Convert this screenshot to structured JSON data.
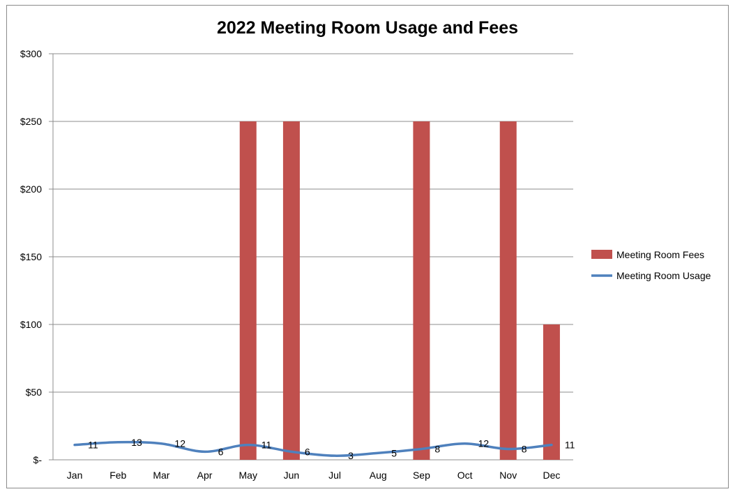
{
  "chart_data": {
    "type": "bar",
    "title": "2022 Meeting Room Usage and Fees",
    "categories": [
      "Jan",
      "Feb",
      "Mar",
      "Apr",
      "May",
      "Jun",
      "Jul",
      "Aug",
      "Sep",
      "Oct",
      "Nov",
      "Dec"
    ],
    "y_ticks": [
      "$-",
      "$50",
      "$100",
      "$150",
      "$200",
      "$250",
      "$300"
    ],
    "ylim": [
      0,
      300
    ],
    "grid": true,
    "legend_position": "right",
    "series": [
      {
        "name": "Meeting Room Fees",
        "type": "bar",
        "color": "#c0504d",
        "values": [
          0,
          0,
          0,
          0,
          250,
          250,
          0,
          0,
          250,
          0,
          250,
          100
        ]
      },
      {
        "name": "Meeting Room Usage",
        "type": "line",
        "color": "#4f81bd",
        "values": [
          11,
          13,
          12,
          6,
          11,
          6,
          3,
          5,
          8,
          12,
          8,
          11
        ],
        "data_labels": [
          "11",
          "13",
          "12",
          "6",
          "11",
          "6",
          "3",
          "5",
          "8",
          "12",
          "8",
          "11"
        ]
      }
    ]
  }
}
